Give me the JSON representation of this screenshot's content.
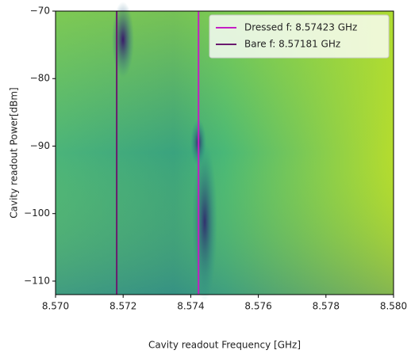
{
  "chart_data": {
    "type": "heatmap",
    "x_label": "Cavity readout Frequency [GHz]",
    "y_label": "Cavity readout Power[dBm]",
    "xlim": [
      8.57,
      8.58
    ],
    "xticks": [
      {
        "value": 8.57,
        "label": "8.570"
      },
      {
        "value": 8.572,
        "label": "8.572"
      },
      {
        "value": 8.574,
        "label": "8.574"
      },
      {
        "value": 8.576,
        "label": "8.576"
      },
      {
        "value": 8.578,
        "label": "8.578"
      },
      {
        "value": 8.58,
        "label": "8.580"
      }
    ],
    "ylim": [
      -112,
      -70
    ],
    "yticks": [
      {
        "value": -70,
        "label": "−70"
      },
      {
        "value": -80,
        "label": "−80"
      },
      {
        "value": -90,
        "label": "−90"
      },
      {
        "value": -100,
        "label": "−100"
      },
      {
        "value": -110,
        "label": "−110"
      }
    ],
    "lines": [
      {
        "name": "Dressed f: 8.57423 GHz",
        "x": 8.57423,
        "color": "#c41fc4"
      },
      {
        "name": "Bare f: 8.57181 GHz",
        "x": 8.57181,
        "color": "#6a1a6e"
      }
    ],
    "legend": "upper right"
  }
}
